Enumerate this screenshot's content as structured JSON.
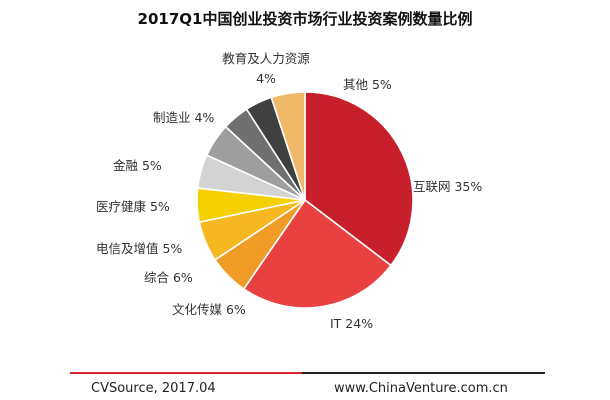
{
  "chart_data": {
    "type": "pie",
    "title": "2017Q1中国创业投资市场行业投资案例数量比例",
    "slices": [
      {
        "name": "互联网",
        "value": 35,
        "label": "互联网 35%",
        "color": "#c8202a"
      },
      {
        "name": "IT",
        "value": 24,
        "label": "IT 24%",
        "color": "#e8413f"
      },
      {
        "name": "文化传媒",
        "value": 6,
        "label": "文化传媒 6%",
        "color": "#ef9b25"
      },
      {
        "name": "综合",
        "value": 6,
        "label": "综合 6%",
        "color": "#f6b820"
      },
      {
        "name": "电信及增值",
        "value": 5,
        "label": "电信及增值 5%",
        "color": "#f5d000"
      },
      {
        "name": "医疗健康",
        "value": 5,
        "label": "医疗健康 5%",
        "color": "#d3d3d3"
      },
      {
        "name": "金融",
        "value": 5,
        "label": "金融 5%",
        "color": "#9e9e9e"
      },
      {
        "name": "制造业",
        "value": 4,
        "label": "制造业 4%",
        "color": "#707070"
      },
      {
        "name": "教育及人力资源",
        "value": 4,
        "label": "教育及人力资源 4%",
        "color": "#404040"
      },
      {
        "name": "其他",
        "value": 5,
        "label": "其他 5%",
        "color": "#f0b96a"
      }
    ]
  },
  "footer": {
    "source": "CVSource, 2017.04",
    "website": "www.ChinaVenture.com.cn"
  }
}
